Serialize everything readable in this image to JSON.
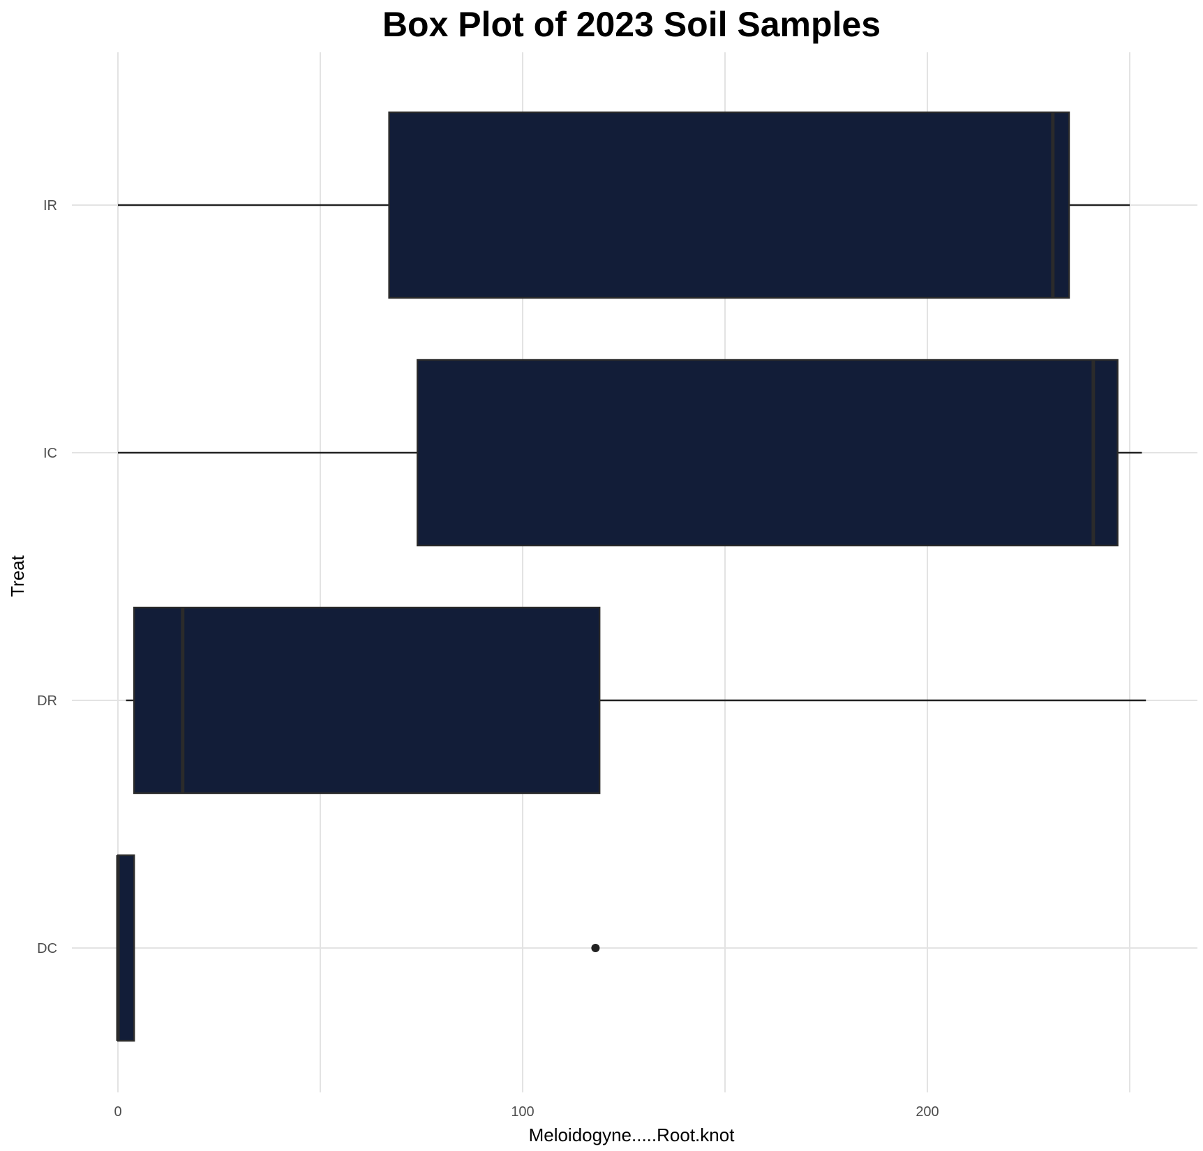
{
  "chart_data": {
    "type": "boxplot",
    "orientation": "horizontal",
    "title": "Box Plot of 2023 Soil Samples",
    "xlabel": "Meloidogyne.....Root.knot",
    "ylabel": "Treat",
    "xlim": [
      -5,
      266
    ],
    "x_ticks": [
      0,
      100,
      200
    ],
    "x_minor_ticks": [
      50,
      150,
      250
    ],
    "grid": true,
    "legend": "none",
    "colors": {
      "box_fill": "#121d38",
      "box_stroke": "#2b2b2b",
      "median": "#2b2b2b",
      "whisker": "#222222",
      "outlier": "#222222",
      "grid": "#e3e3e3"
    },
    "categories": [
      "IR",
      "IC",
      "DR",
      "DC"
    ],
    "boxes": [
      {
        "category": "IR",
        "whisker_low": 0,
        "q1": 67,
        "median": 231,
        "q3": 235,
        "whisker_high": 250,
        "outliers": []
      },
      {
        "category": "IC",
        "whisker_low": 0,
        "q1": 74,
        "median": 241,
        "q3": 247,
        "whisker_high": 253,
        "outliers": []
      },
      {
        "category": "DR",
        "whisker_low": 2,
        "q1": 4,
        "median": 16,
        "q3": 119,
        "whisker_high": 254,
        "outliers": []
      },
      {
        "category": "DC",
        "whisker_low": 0,
        "q1": 0,
        "median": 0,
        "q3": 4,
        "whisker_high": 4,
        "outliers": [
          118
        ]
      }
    ]
  }
}
